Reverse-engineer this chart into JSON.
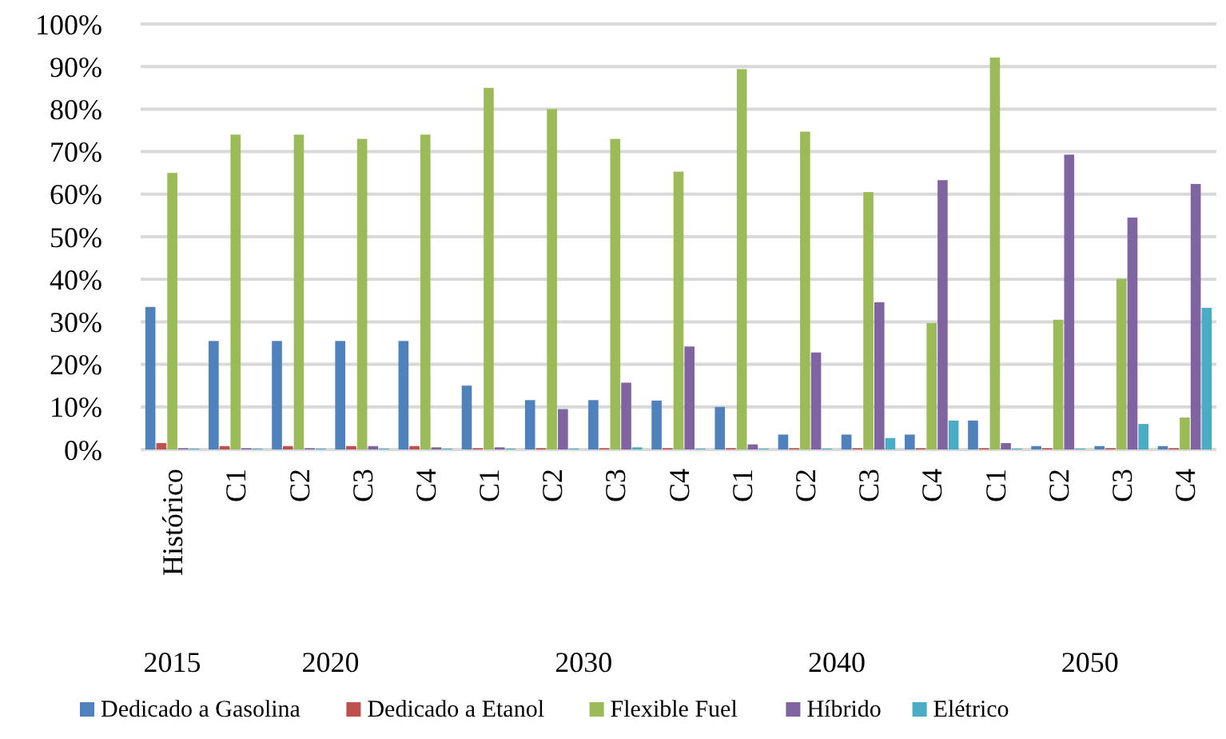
{
  "chart_data": {
    "type": "bar",
    "categories": [
      "Histórico",
      "C1",
      "C2",
      "C3",
      "C4",
      "C1",
      "C2",
      "C3",
      "C4",
      "C1",
      "C2",
      "C3",
      "C4",
      "C1",
      "C2",
      "C3",
      "C4"
    ],
    "series": [
      {
        "name": "Dedicado a Gasolina",
        "color": "#4f81bd",
        "values": [
          33.5,
          25.5,
          25.5,
          25.5,
          25.5,
          15,
          11.6,
          11.6,
          11.5,
          10,
          3.5,
          3.5,
          3.5,
          6.8,
          0.8,
          0.8,
          0.8
        ]
      },
      {
        "name": "Dedicado a Etanol",
        "color": "#c0504d",
        "values": [
          1.5,
          0.8,
          0.8,
          0.8,
          0.8,
          0.3,
          0.3,
          0.3,
          0.3,
          0.3,
          0.3,
          0.3,
          0.3,
          0.3,
          0.3,
          0.3,
          0.3
        ]
      },
      {
        "name": "Flexible Fuel",
        "color": "#9bbb59",
        "values": [
          65,
          74,
          74,
          73,
          74,
          85,
          80,
          73,
          65.3,
          89.4,
          74.7,
          60.5,
          29.7,
          92.1,
          30.5,
          40.1,
          7.5
        ]
      },
      {
        "name": "Híbrido",
        "color": "#8064a2",
        "values": [
          0.3,
          0.3,
          0.3,
          0.8,
          0.5,
          0.5,
          9.5,
          15.7,
          24.2,
          1.2,
          22.8,
          34.6,
          63.3,
          1.5,
          69.3,
          54.5,
          62.4
        ]
      },
      {
        "name": "Elétrico",
        "color": "#4bacc6",
        "values": [
          0.2,
          0.2,
          0.2,
          0.2,
          0.2,
          0.2,
          0.2,
          0.5,
          0.2,
          0.2,
          0.2,
          2.7,
          6.8,
          0.2,
          0.2,
          6,
          33.3
        ]
      }
    ],
    "ylim": [
      0,
      100
    ],
    "yticks": [
      {
        "value": 0,
        "label": "0%"
      },
      {
        "value": 10,
        "label": "10%"
      },
      {
        "value": 20,
        "label": "20%"
      },
      {
        "value": 30,
        "label": "30%"
      },
      {
        "value": 40,
        "label": "40%"
      },
      {
        "value": 50,
        "label": "50%"
      },
      {
        "value": 60,
        "label": "60%"
      },
      {
        "value": 70,
        "label": "70%"
      },
      {
        "value": 80,
        "label": "80%"
      },
      {
        "value": 90,
        "label": "90%"
      },
      {
        "value": 100,
        "label": "100%"
      }
    ],
    "grid": "y",
    "legend": "bottom",
    "annotations": [
      "2015",
      "2020",
      "2030",
      "2040",
      "2050"
    ]
  }
}
